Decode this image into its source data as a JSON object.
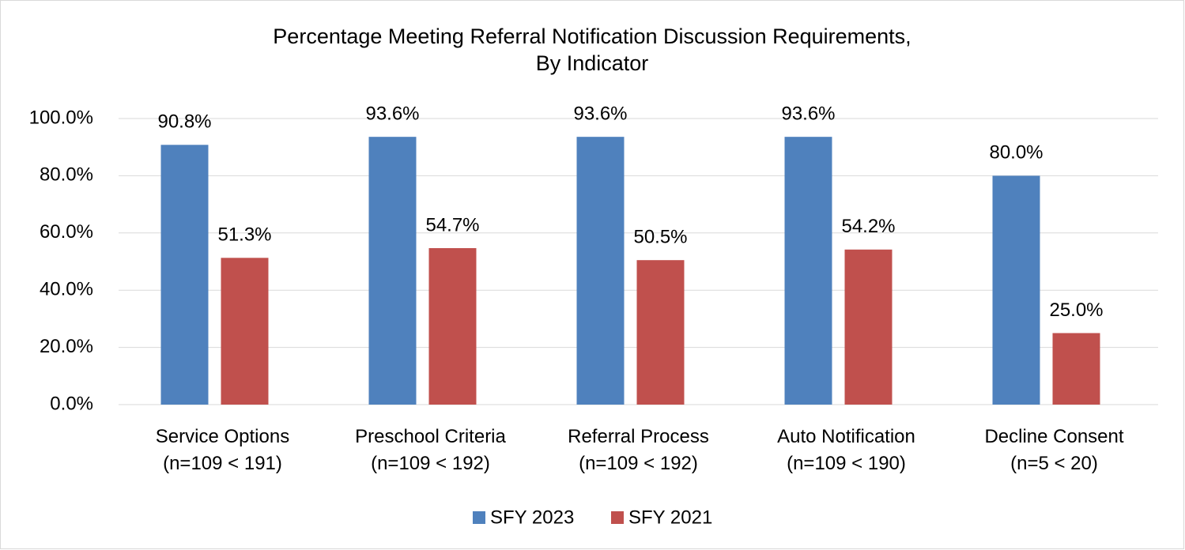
{
  "chart_data": {
    "type": "bar",
    "title": [
      "Percentage Meeting Referral Notification Discussion Requirements,",
      "By Indicator"
    ],
    "categories": [
      [
        "Service Options",
        "(n=109 < 191)"
      ],
      [
        "Preschool Criteria",
        "(n=109 < 192)"
      ],
      [
        "Referral Process",
        "(n=109 < 192)"
      ],
      [
        "Auto Notification",
        "(n=109 < 190)"
      ],
      [
        "Decline Consent",
        "(n=5 < 20)"
      ]
    ],
    "series": [
      {
        "name": "SFY 2023",
        "color": "#4f81bd",
        "values": [
          90.8,
          93.6,
          93.6,
          93.6,
          80.0
        ],
        "value_labels": [
          "90.8%",
          "93.6%",
          "93.6%",
          "93.6%",
          "80.0%"
        ]
      },
      {
        "name": "SFY 2021",
        "color": "#c0504d",
        "values": [
          51.3,
          54.7,
          50.5,
          54.2,
          25.0
        ],
        "value_labels": [
          "51.3%",
          "54.7%",
          "50.5%",
          "54.2%",
          "25.0%"
        ]
      }
    ],
    "ylim": [
      0,
      100
    ],
    "yticks": [
      {
        "value": 0,
        "label": "0.0%"
      },
      {
        "value": 20,
        "label": "20.0%"
      },
      {
        "value": 40,
        "label": "40.0%"
      },
      {
        "value": 60,
        "label": "60.0%"
      },
      {
        "value": 80,
        "label": "80.0%"
      },
      {
        "value": 100,
        "label": "100.0%"
      }
    ],
    "grid": true,
    "legend": "bottom"
  }
}
